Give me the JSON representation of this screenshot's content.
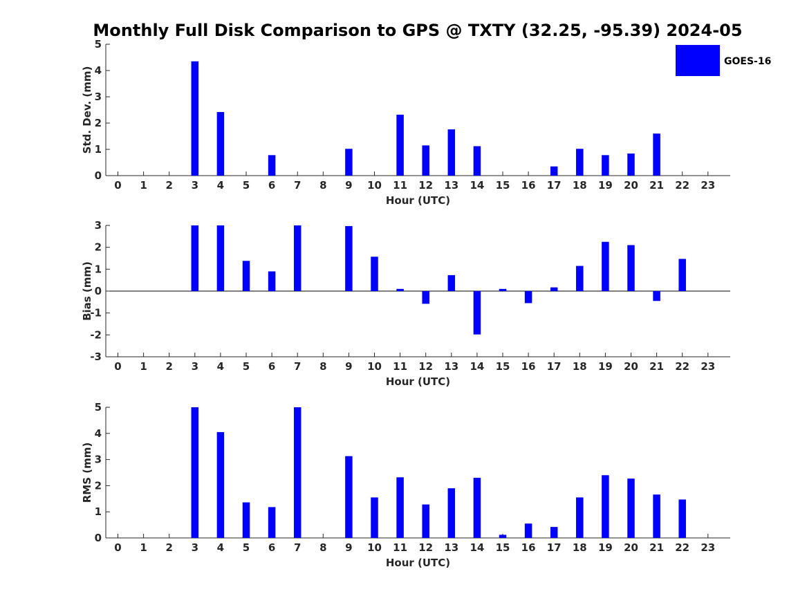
{
  "title": "Monthly Full Disk Comparison to GPS @ TXTY (32.25, -95.39) 2024-05",
  "legend": {
    "label": "GOES-16",
    "color": "#0000ff"
  },
  "chart_data": [
    {
      "type": "bar",
      "name": "stddev",
      "ylabel": "Std. Dev. (mm)",
      "xlabel": "Hour (UTC)",
      "categories": [
        "0",
        "1",
        "2",
        "3",
        "4",
        "5",
        "6",
        "7",
        "8",
        "9",
        "10",
        "11",
        "12",
        "13",
        "14",
        "15",
        "16",
        "17",
        "18",
        "19",
        "20",
        "21",
        "22",
        "23"
      ],
      "values": [
        null,
        null,
        null,
        4.35,
        2.42,
        null,
        0.78,
        null,
        null,
        1.02,
        null,
        2.32,
        1.15,
        1.76,
        1.12,
        null,
        null,
        0.35,
        1.02,
        0.78,
        0.84,
        1.6,
        null,
        null
      ],
      "ylim": [
        0,
        5
      ],
      "yticks": [
        0,
        1,
        2,
        3,
        4,
        5
      ]
    },
    {
      "type": "bar",
      "name": "bias",
      "ylabel": "Bias (mm)",
      "xlabel": "Hour (UTC)",
      "categories": [
        "0",
        "1",
        "2",
        "3",
        "4",
        "5",
        "6",
        "7",
        "8",
        "9",
        "10",
        "11",
        "12",
        "13",
        "14",
        "15",
        "16",
        "17",
        "18",
        "19",
        "20",
        "21",
        "22",
        "23"
      ],
      "values": [
        null,
        null,
        null,
        3.0,
        3.0,
        1.38,
        0.9,
        3.0,
        null,
        2.97,
        1.57,
        0.1,
        -0.58,
        0.73,
        -1.98,
        0.1,
        -0.55,
        0.17,
        1.15,
        2.25,
        2.1,
        -0.45,
        1.47,
        null
      ],
      "ylim": [
        -3,
        3
      ],
      "yticks": [
        -3,
        -2,
        -1,
        0,
        1,
        2,
        3
      ]
    },
    {
      "type": "bar",
      "name": "rms",
      "ylabel": "RMS (mm)",
      "xlabel": "Hour (UTC)",
      "categories": [
        "0",
        "1",
        "2",
        "3",
        "4",
        "5",
        "6",
        "7",
        "8",
        "9",
        "10",
        "11",
        "12",
        "13",
        "14",
        "15",
        "16",
        "17",
        "18",
        "19",
        "20",
        "21",
        "22",
        "23"
      ],
      "values": [
        null,
        null,
        null,
        5.0,
        4.05,
        1.36,
        1.18,
        5.0,
        null,
        3.13,
        1.55,
        2.32,
        1.28,
        1.9,
        2.3,
        0.12,
        0.55,
        0.42,
        1.55,
        2.4,
        2.27,
        1.66,
        1.47,
        null
      ],
      "ylim": [
        0,
        5
      ],
      "yticks": [
        0,
        1,
        2,
        3,
        4,
        5
      ]
    }
  ]
}
